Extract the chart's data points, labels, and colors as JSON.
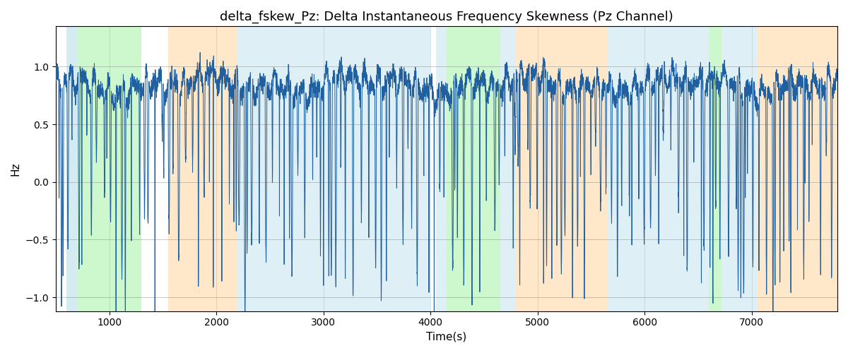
{
  "title": "delta_fskew_Pz: Delta Instantaneous Frequency Skewness (Pz Channel)",
  "xlabel": "Time(s)",
  "ylabel": "Hz",
  "xlim": [
    500,
    7800
  ],
  "ylim": [
    -1.12,
    1.35
  ],
  "line_color": "#2060a0",
  "line_width": 0.7,
  "bg_regions": [
    {
      "xmin": 600,
      "xmax": 700,
      "color": "#add8e6",
      "alpha": 0.5
    },
    {
      "xmin": 700,
      "xmax": 1300,
      "color": "#90ee90",
      "alpha": 0.45
    },
    {
      "xmin": 1550,
      "xmax": 2200,
      "color": "#ffd59e",
      "alpha": 0.55
    },
    {
      "xmin": 2200,
      "xmax": 4000,
      "color": "#add8e6",
      "alpha": 0.4
    },
    {
      "xmin": 4050,
      "xmax": 4150,
      "color": "#add8e6",
      "alpha": 0.4
    },
    {
      "xmin": 4150,
      "xmax": 4650,
      "color": "#90ee90",
      "alpha": 0.45
    },
    {
      "xmin": 4650,
      "xmax": 4800,
      "color": "#add8e6",
      "alpha": 0.4
    },
    {
      "xmin": 4800,
      "xmax": 5650,
      "color": "#ffd59e",
      "alpha": 0.55
    },
    {
      "xmin": 5650,
      "xmax": 6600,
      "color": "#add8e6",
      "alpha": 0.4
    },
    {
      "xmin": 6600,
      "xmax": 6720,
      "color": "#90ee90",
      "alpha": 0.45
    },
    {
      "xmin": 6720,
      "xmax": 7050,
      "color": "#add8e6",
      "alpha": 0.4
    },
    {
      "xmin": 7050,
      "xmax": 7800,
      "color": "#ffd59e",
      "alpha": 0.55
    }
  ],
  "xticks": [
    1000,
    2000,
    3000,
    4000,
    5000,
    6000,
    7000
  ],
  "yticks": [
    -1.0,
    -0.5,
    0.0,
    0.5,
    1.0
  ],
  "title_fontsize": 13,
  "label_fontsize": 11,
  "tick_fontsize": 10
}
